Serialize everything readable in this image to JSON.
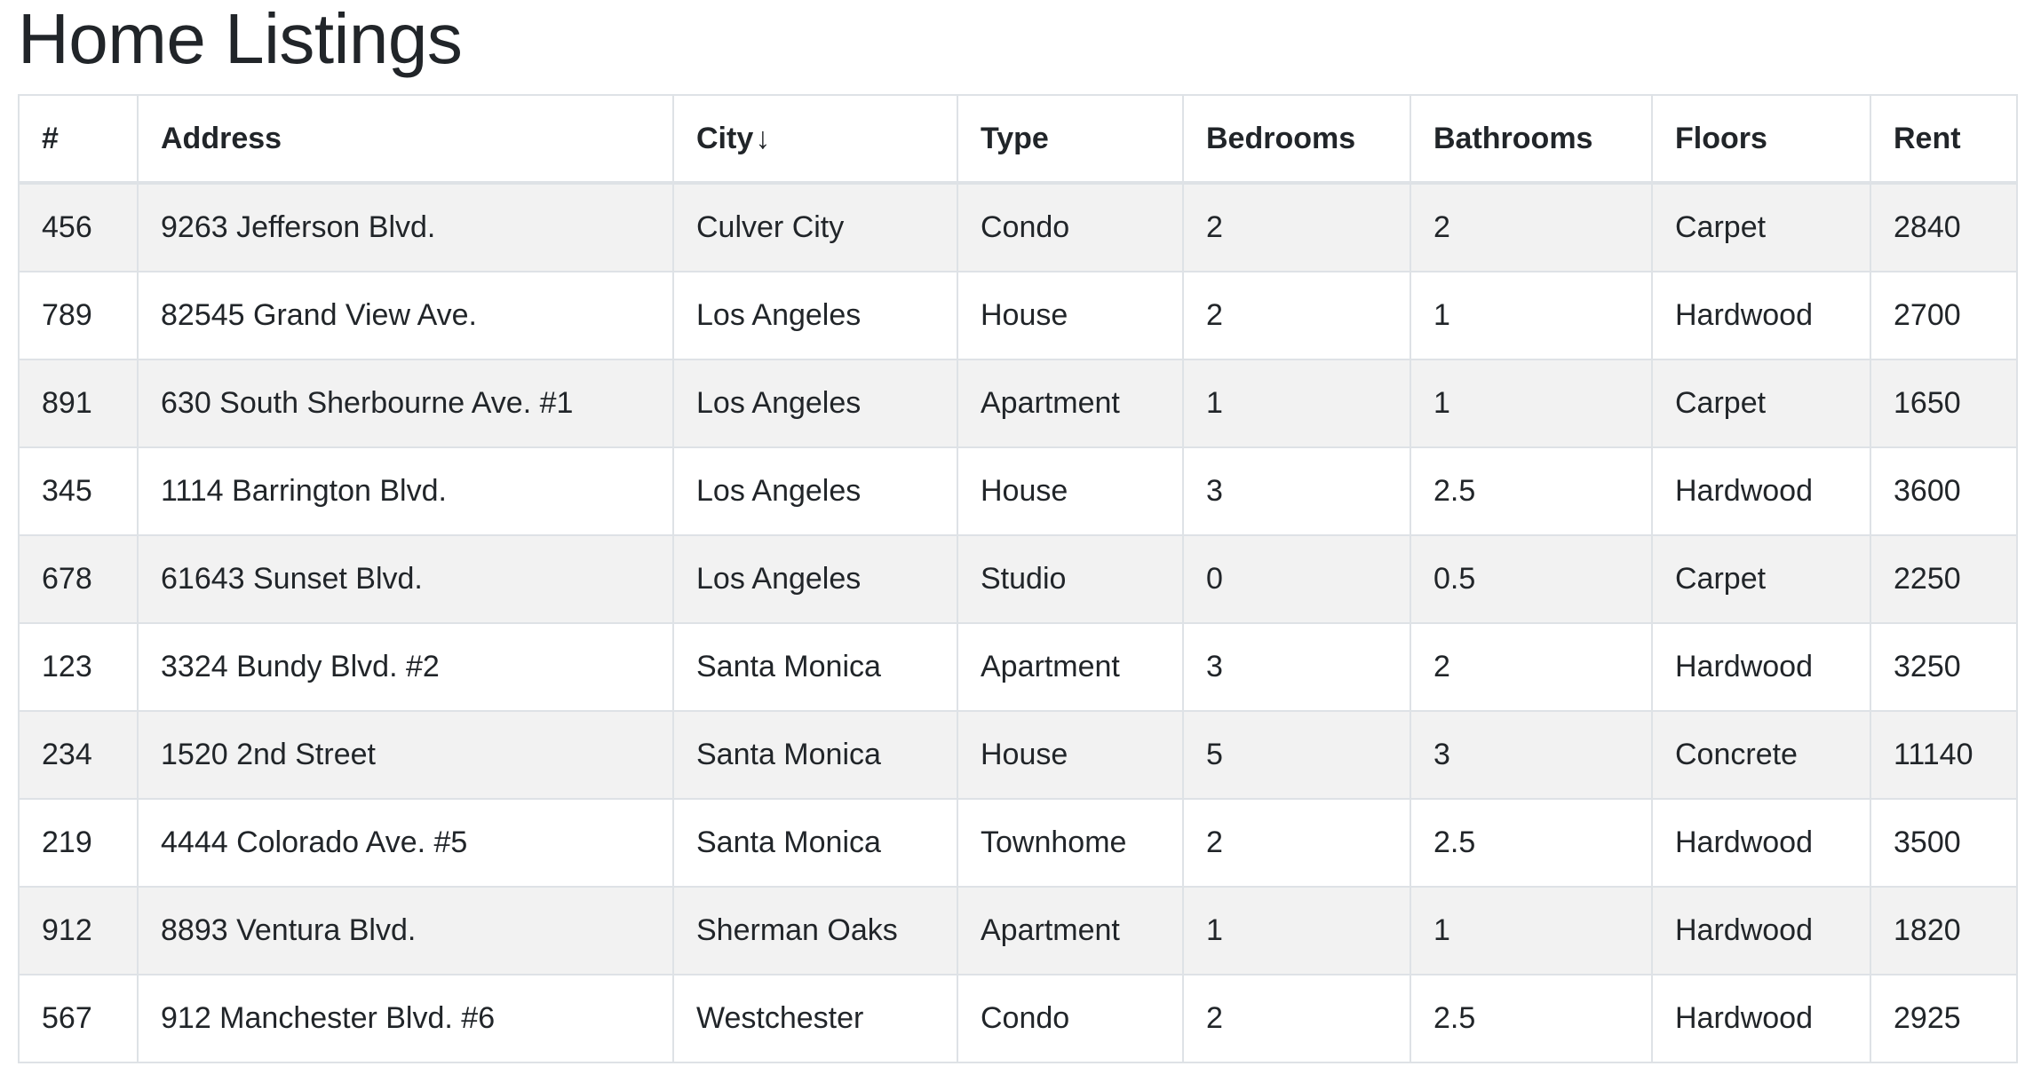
{
  "page": {
    "title": "Home Listings"
  },
  "table": {
    "columns": [
      {
        "label": "#"
      },
      {
        "label": "Address"
      },
      {
        "label": "City",
        "sort_indicator": "↓"
      },
      {
        "label": "Type"
      },
      {
        "label": "Bedrooms"
      },
      {
        "label": "Bathrooms"
      },
      {
        "label": "Floors"
      },
      {
        "label": "Rent"
      }
    ],
    "rows": [
      [
        "456",
        "9263 Jefferson Blvd.",
        "Culver City",
        "Condo",
        "2",
        "2",
        "Carpet",
        "2840"
      ],
      [
        "789",
        "82545 Grand View Ave.",
        "Los Angeles",
        "House",
        "2",
        "1",
        "Hardwood",
        "2700"
      ],
      [
        "891",
        "630 South Sherbourne Ave. #1",
        "Los Angeles",
        "Apartment",
        "1",
        "1",
        "Carpet",
        "1650"
      ],
      [
        "345",
        "1114 Barrington Blvd.",
        "Los Angeles",
        "House",
        "3",
        "2.5",
        "Hardwood",
        "3600"
      ],
      [
        "678",
        "61643 Sunset Blvd.",
        "Los Angeles",
        "Studio",
        "0",
        "0.5",
        "Carpet",
        "2250"
      ],
      [
        "123",
        "3324 Bundy Blvd. #2",
        "Santa Monica",
        "Apartment",
        "3",
        "2",
        "Hardwood",
        "3250"
      ],
      [
        "234",
        "1520 2nd Street",
        "Santa Monica",
        "House",
        "5",
        "3",
        "Concrete",
        "11140"
      ],
      [
        "219",
        "4444 Colorado Ave. #5",
        "Santa Monica",
        "Townhome",
        "2",
        "2.5",
        "Hardwood",
        "3500"
      ],
      [
        "912",
        "8893 Ventura Blvd.",
        "Sherman Oaks",
        "Apartment",
        "1",
        "1",
        "Hardwood",
        "1820"
      ],
      [
        "567",
        "912 Manchester Blvd. #6",
        "Westchester",
        "Condo",
        "2",
        "2.5",
        "Hardwood",
        "2925"
      ]
    ]
  }
}
